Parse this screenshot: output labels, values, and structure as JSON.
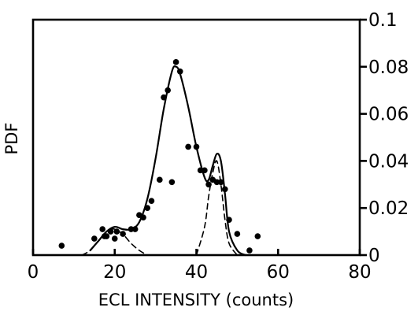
{
  "chart_data": {
    "type": "line",
    "title": "",
    "xlabel": "ECL INTENSITY (counts)",
    "ylabel": "PDF",
    "xlim": [
      0,
      80
    ],
    "ylim": [
      0,
      0.1
    ],
    "x_ticks": [
      0,
      20,
      40,
      60,
      80
    ],
    "y_ticks": [
      0,
      0.02,
      0.04,
      0.06,
      0.08,
      0.1
    ],
    "y_tick_labels": [
      "0",
      "0.02",
      "0.04",
      "0.06",
      "0.08",
      "0.1"
    ],
    "y_axis_side": "right",
    "grid": false,
    "legend": "none",
    "series": [
      {
        "style": "solid",
        "x": [
          14,
          16,
          18,
          20,
          22,
          24,
          26,
          28,
          30,
          32,
          34,
          35,
          36,
          38,
          40,
          42,
          43,
          44,
          45,
          46,
          47,
          48,
          50,
          52
        ],
        "y": [
          0.002,
          0.006,
          0.01,
          0.012,
          0.011,
          0.011,
          0.014,
          0.024,
          0.041,
          0.062,
          0.078,
          0.08,
          0.077,
          0.063,
          0.046,
          0.033,
          0.032,
          0.038,
          0.043,
          0.04,
          0.026,
          0.01,
          0.002,
          0.0
        ]
      },
      {
        "style": "dashed",
        "x": [
          12,
          14,
          16,
          18,
          19,
          20,
          21,
          22,
          24,
          26,
          28
        ],
        "y": [
          0.0,
          0.002,
          0.006,
          0.01,
          0.011,
          0.011,
          0.01,
          0.009,
          0.005,
          0.002,
          0.0
        ]
      },
      {
        "style": "dashed",
        "x": [
          40,
          42,
          43,
          44,
          45,
          46,
          47,
          48,
          50
        ],
        "y": [
          0.0,
          0.012,
          0.025,
          0.035,
          0.04,
          0.03,
          0.015,
          0.005,
          0.0
        ]
      },
      {
        "style": "markers",
        "x": [
          7,
          15,
          17,
          17.5,
          18,
          19,
          20,
          20.5,
          22,
          24,
          25,
          26,
          27,
          28,
          29,
          31,
          32,
          33,
          34,
          35,
          36,
          38,
          40,
          41,
          42,
          43,
          44,
          45,
          46,
          47,
          48,
          50,
          53,
          55
        ],
        "y": [
          0.004,
          0.007,
          0.011,
          0.008,
          0.008,
          0.01,
          0.007,
          0.01,
          0.009,
          0.011,
          0.011,
          0.017,
          0.016,
          0.02,
          0.023,
          0.032,
          0.067,
          0.07,
          0.031,
          0.082,
          0.078,
          0.046,
          0.046,
          0.036,
          0.036,
          0.03,
          0.032,
          0.031,
          0.031,
          0.028,
          0.015,
          0.009,
          0.002,
          0.008
        ]
      }
    ]
  }
}
